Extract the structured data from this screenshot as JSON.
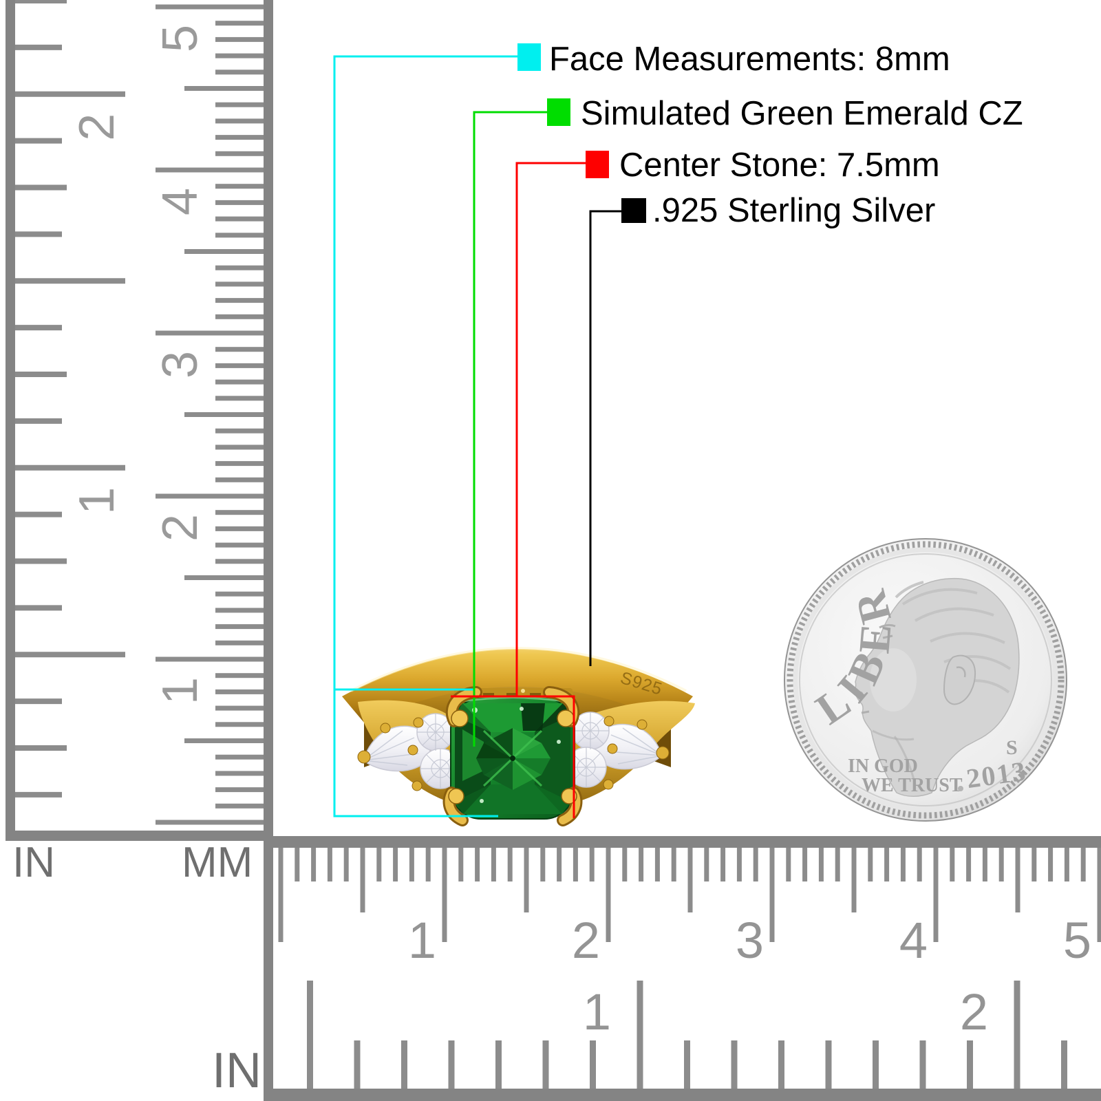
{
  "page": {
    "background": "#ffffff"
  },
  "legend": {
    "items": [
      {
        "color": "#00EFEF",
        "label": "Face Measurements: 8mm"
      },
      {
        "color": "#00DD00",
        "label": "Simulated Green Emerald CZ"
      },
      {
        "color": "#FE0000",
        "label": "Center Stone: 7.5mm"
      },
      {
        "color": "#000000",
        "label": ".925 Sterling Silver"
      }
    ]
  },
  "rulers": {
    "vertical": {
      "unit_left": "IN",
      "unit_right": "MM",
      "inch_numbers": [
        "2",
        "1"
      ],
      "cm_numbers": [
        "5",
        "4",
        "3",
        "2",
        "1"
      ]
    },
    "horizontal": {
      "unit": "IN",
      "cm_numbers": [
        "1",
        "2",
        "3",
        "4",
        "5"
      ],
      "inch_numbers": [
        "1",
        "2"
      ]
    }
  },
  "ring": {
    "engraving": "S925"
  },
  "coin": {
    "liberty": "LIBERTY",
    "motto_line1": "IN GOD",
    "motto_line2": "WE TRUST",
    "mint_mark": "S",
    "year": "2013"
  }
}
